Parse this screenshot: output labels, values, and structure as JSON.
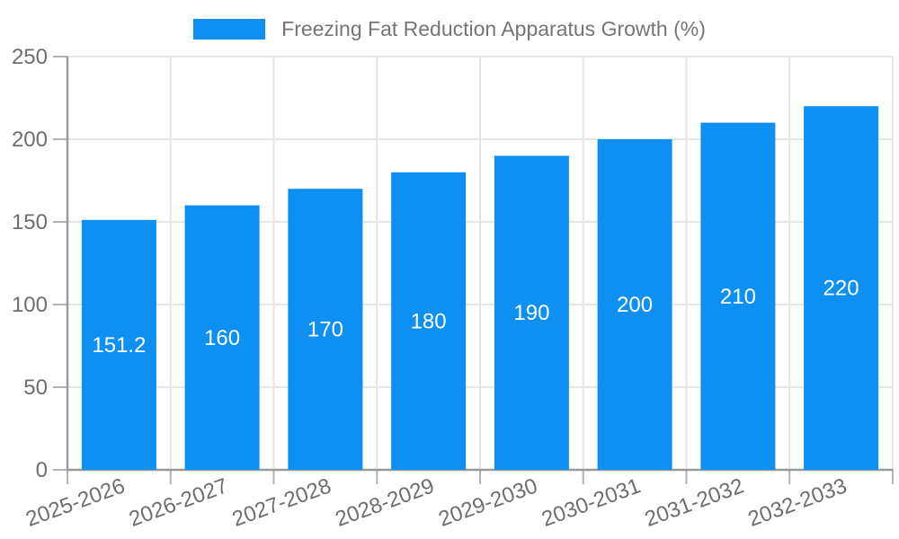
{
  "legend": {
    "label": "Freezing Fat Reduction Apparatus Growth (%)"
  },
  "chart_data": {
    "type": "bar",
    "title": "Freezing Fat Reduction Apparatus Growth (%)",
    "series_name": "Freezing Fat Reduction Apparatus Growth (%)",
    "categories": [
      "2025-2026",
      "2026-2027",
      "2027-2028",
      "2028-2029",
      "2029-2030",
      "2030-2031",
      "2031-2032",
      "2032-2033"
    ],
    "values": [
      151.2,
      160,
      170,
      180,
      190,
      200,
      210,
      220
    ],
    "value_labels": [
      "151.2",
      "160",
      "170",
      "180",
      "190",
      "200",
      "210",
      "220"
    ],
    "xlabel": "",
    "ylabel": "",
    "ylim": [
      0,
      250
    ],
    "yticks": [
      0,
      50,
      100,
      150,
      200,
      250
    ],
    "grid": true,
    "legend_position": "top-center",
    "x_tick_label_rotation_deg": -20,
    "colors": {
      "bar": "#0d90f2",
      "bar_label": "#ffffff",
      "axis_line": "#9a9a9a",
      "tick_line": "#b3b3b3",
      "grid_line": "#e6e6e6",
      "tick_text": "#6e6e6e",
      "legend_text": "#757575",
      "background": "#ffffff"
    }
  }
}
